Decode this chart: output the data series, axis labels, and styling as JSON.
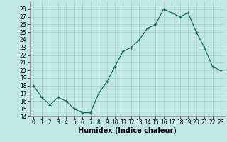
{
  "x": [
    0,
    1,
    2,
    3,
    4,
    5,
    6,
    7,
    8,
    9,
    10,
    11,
    12,
    13,
    14,
    15,
    16,
    17,
    18,
    19,
    20,
    21,
    22,
    23
  ],
  "y": [
    18,
    16.5,
    15.5,
    16.5,
    16,
    15,
    14.5,
    14.5,
    17,
    18.5,
    20.5,
    22.5,
    23,
    24,
    25.5,
    26,
    28,
    27.5,
    27,
    27.5,
    25,
    23,
    20.5,
    20
  ],
  "line_color": "#1a6b5a",
  "marker_color": "#1a6b5a",
  "bg_color": "#c2e8e4",
  "grid_color": "#9ecfcb",
  "xlabel": "Humidex (Indice chaleur)",
  "xlim": [
    -0.5,
    23.5
  ],
  "ylim": [
    14,
    29
  ],
  "yticks": [
    14,
    15,
    16,
    17,
    18,
    19,
    20,
    21,
    22,
    23,
    24,
    25,
    26,
    27,
    28
  ],
  "xtick_labels": [
    "0",
    "1",
    "2",
    "3",
    "4",
    "5",
    "6",
    "7",
    "8",
    "9",
    "10",
    "11",
    "12",
    "13",
    "14",
    "15",
    "16",
    "17",
    "18",
    "19",
    "20",
    "21",
    "22",
    "23"
  ],
  "tick_fontsize": 5.5,
  "xlabel_fontsize": 7.0
}
